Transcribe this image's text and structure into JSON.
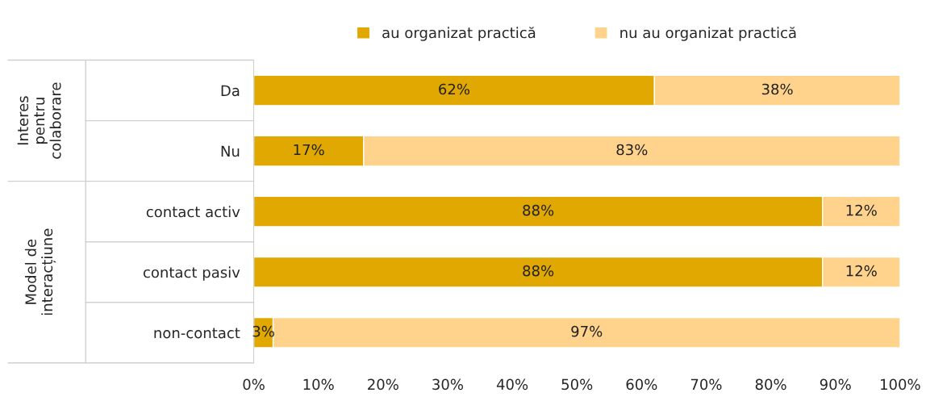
{
  "chart_data": {
    "type": "bar",
    "orientation": "horizontal",
    "stacked": true,
    "categories": [
      "Da",
      "Nu",
      "contact activ",
      "contact pasiv",
      "non-contact"
    ],
    "series": [
      {
        "name": "au organizat practică",
        "color": "#e0a800",
        "values": [
          62,
          17,
          88,
          88,
          3
        ],
        "value_labels": [
          "62%",
          "17%",
          "88%",
          "88%",
          "3%"
        ]
      },
      {
        "name": "nu au organizat practică",
        "color": "#ffd38b",
        "values": [
          38,
          83,
          12,
          12,
          97
        ],
        "value_labels": [
          "38%",
          "83%",
          "12%",
          "12%",
          "97%"
        ]
      }
    ],
    "xlim": [
      0,
      100
    ],
    "xticks": [
      {
        "value": 0,
        "label": "0%"
      },
      {
        "value": 10,
        "label": "10%"
      },
      {
        "value": 20,
        "label": "20%"
      },
      {
        "value": 30,
        "label": "30%"
      },
      {
        "value": 40,
        "label": "40%"
      },
      {
        "value": 50,
        "label": "50%"
      },
      {
        "value": 60,
        "label": "60%"
      },
      {
        "value": 70,
        "label": "70%"
      },
      {
        "value": 80,
        "label": "80%"
      },
      {
        "value": 90,
        "label": "90%"
      },
      {
        "value": 100,
        "label": "100%"
      }
    ],
    "annotations": [
      "Interes\npentru\ncolaborare",
      "Model de\ninteracțiune"
    ],
    "legend": "top",
    "grid": false
  }
}
